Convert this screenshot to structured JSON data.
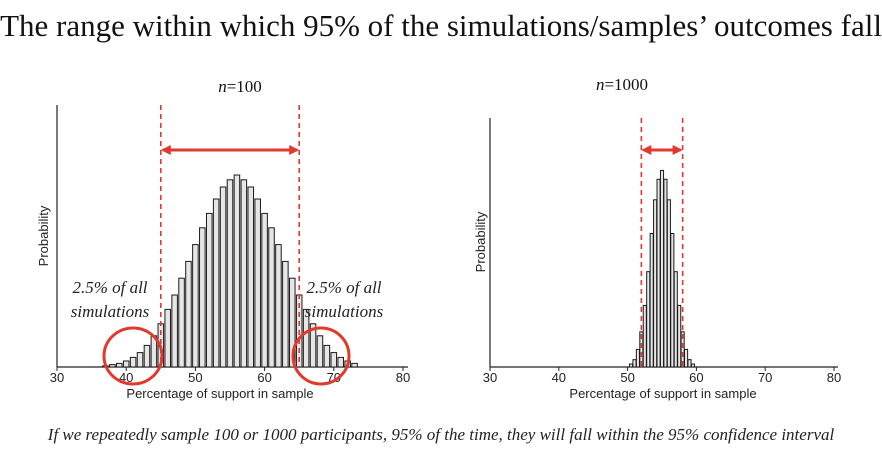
{
  "title": "The range within which 95% of the simulations/samples’ outcomes fall",
  "footer": "If we repeatedly sample 100 or 1000 participants, 95% of the time, they will fall within the 95% confidence interval",
  "colors": {
    "bar_fill": "#e6e6e6",
    "bar_stroke": "#1a1a1a",
    "highlight": "#e03a2f",
    "axis": "#222222"
  },
  "chart_data": [
    {
      "type": "bar",
      "n_label_italic": "n",
      "n_label_rest": "=100",
      "xlabel": "Percentage of support in sample",
      "ylabel": "Probability",
      "xlim": [
        30,
        80
      ],
      "xticks": [
        "30",
        "40",
        "50",
        "60",
        "70",
        "80"
      ],
      "x": [
        37,
        38,
        39,
        40,
        41,
        42,
        43,
        44,
        45,
        46,
        47,
        48,
        49,
        50,
        51,
        52,
        53,
        54,
        55,
        56,
        57,
        58,
        59,
        60,
        61,
        62,
        63,
        64,
        65,
        66,
        67,
        68,
        69,
        70,
        71,
        72,
        73
      ],
      "values": [
        0.0005,
        0.001,
        0.0015,
        0.0025,
        0.004,
        0.006,
        0.009,
        0.013,
        0.018,
        0.024,
        0.03,
        0.037,
        0.044,
        0.051,
        0.058,
        0.064,
        0.07,
        0.075,
        0.078,
        0.08,
        0.078,
        0.075,
        0.07,
        0.064,
        0.058,
        0.051,
        0.044,
        0.037,
        0.03,
        0.024,
        0.018,
        0.013,
        0.009,
        0.006,
        0.004,
        0.0025,
        0.0015
      ],
      "ylim": [
        0,
        0.1
      ],
      "ci_low": 45,
      "ci_high": 65,
      "annotations": {
        "left_line1": "2.5% of all",
        "left_line2": "simulations",
        "right_line1": "2.5% of all",
        "right_line2": "simulations"
      }
    },
    {
      "type": "bar",
      "n_label_italic": "n",
      "n_label_rest": "=1000",
      "xlabel": "Percentage of support in sample",
      "ylabel": "Probability",
      "xlim": [
        30,
        80
      ],
      "xticks": [
        "30",
        "40",
        "50",
        "60",
        "70",
        "80"
      ],
      "x": [
        50.5,
        51,
        51.5,
        52,
        52.5,
        53,
        53.5,
        54,
        54.5,
        55,
        55.5,
        56,
        56.5,
        57,
        57.5,
        58,
        58.5,
        59,
        59.5
      ],
      "values": [
        0.002,
        0.005,
        0.012,
        0.024,
        0.042,
        0.065,
        0.091,
        0.114,
        0.128,
        0.134,
        0.128,
        0.114,
        0.091,
        0.065,
        0.042,
        0.024,
        0.012,
        0.005,
        0.002
      ],
      "ylim": [
        0,
        0.15
      ],
      "ci_low": 52,
      "ci_high": 58
    }
  ]
}
